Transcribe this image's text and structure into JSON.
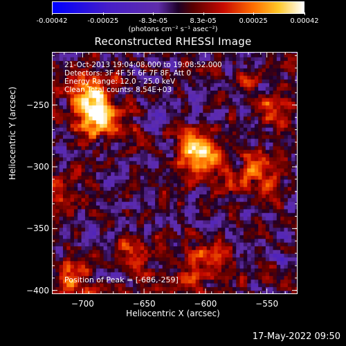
{
  "colorbar": {
    "tick_labels": [
      "-0.00042",
      "-0.00025",
      "-8.3e-05",
      "8.3e-05",
      "0.00025",
      "0.00042"
    ],
    "units": "(photons cm⁻² s⁻¹ asec⁻²)",
    "range": [
      -0.00042,
      0.00042
    ]
  },
  "chart_data": {
    "type": "heatmap",
    "title": "Reconstructed RHESSI Image",
    "xlabel": "Heliocentric X (arcsec)",
    "ylabel": "Heliocentric Y (arcsec)",
    "xlim": [
      -725,
      -525
    ],
    "ylim": [
      -403,
      -207
    ],
    "x_ticks": [
      -700,
      -650,
      -600,
      -550
    ],
    "y_ticks": [
      -250,
      -300,
      -350,
      -400
    ],
    "annotations": [
      "21-Oct-2013 19:04:08.000 to 19:08:52.000",
      "Detectors: 3F 4F 5F 6F 7F 8F, Att 0",
      "Energy Range: 12.0 - 25.0 keV",
      "Clean     Total counts: 8.54E+03"
    ],
    "peak_label": "Position of Peak = [-686,-259]",
    "sources": [
      {
        "x": -605,
        "y": -288,
        "peak": 0.00042
      },
      {
        "x": -686,
        "y": -259,
        "peak": 0.0004
      },
      {
        "x": -698,
        "y": -238,
        "peak": 0.00028
      },
      {
        "x": -560,
        "y": -305,
        "peak": 0.0002
      },
      {
        "x": -595,
        "y": -373,
        "peak": 0.00018
      },
      {
        "x": -708,
        "y": -395,
        "peak": 0.00018
      },
      {
        "x": -620,
        "y": -395,
        "peak": 0.00014
      },
      {
        "x": -545,
        "y": -255,
        "peak": 0.00016
      },
      {
        "x": -660,
        "y": -370,
        "peak": 0.00012
      },
      {
        "x": -715,
        "y": -320,
        "peak": 0.00012
      }
    ]
  },
  "footer": {
    "date": "17-May-2022 09:50"
  }
}
